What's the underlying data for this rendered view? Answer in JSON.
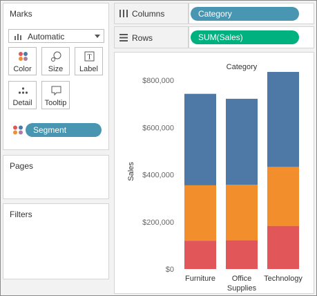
{
  "marks": {
    "title": "Marks",
    "mark_type": "Automatic",
    "cards": [
      {
        "label": "Color",
        "icon": "color-icon"
      },
      {
        "label": "Size",
        "icon": "size-icon"
      },
      {
        "label": "Label",
        "icon": "label-icon"
      },
      {
        "label": "Detail",
        "icon": "detail-icon"
      },
      {
        "label": "Tooltip",
        "icon": "tooltip-icon"
      }
    ],
    "color_field": "Segment",
    "label_icon_glyph": "T"
  },
  "pages": {
    "title": "Pages"
  },
  "filters": {
    "title": "Filters"
  },
  "shelves": {
    "columns": {
      "label": "Columns",
      "pill": "Category"
    },
    "rows": {
      "label": "Rows",
      "pill": "SUM(Sales)"
    }
  },
  "colors": {
    "pill_dimension": "#4996b2",
    "pill_measure": "#00b180",
    "consumer": "#4e79a7",
    "corporate": "#f28e2b",
    "home_office": "#e15759"
  },
  "chart_data": {
    "type": "bar",
    "stacked": true,
    "title": "Category",
    "ylabel": "Sales",
    "xlabel": "",
    "categories": [
      "Furniture",
      "Office Supplies",
      "Technology"
    ],
    "category_lines": [
      [
        "Furniture"
      ],
      [
        "Office",
        "Supplies"
      ],
      [
        "Technology"
      ]
    ],
    "series": [
      {
        "values": [
          120000,
          122000,
          183000
        ],
        "color": "#e15759"
      },
      {
        "values": [
          235000,
          235000,
          250000
        ],
        "color": "#f28e2b"
      },
      {
        "values": [
          388000,
          365000,
          403000
        ],
        "color": "#4e79a7"
      }
    ],
    "ylim": [
      0,
      830000
    ],
    "yticks": [
      0,
      200000,
      400000,
      600000,
      800000
    ],
    "ytick_labels": [
      "$0",
      "$200,000",
      "$400,000",
      "$600,000",
      "$800,000"
    ]
  }
}
